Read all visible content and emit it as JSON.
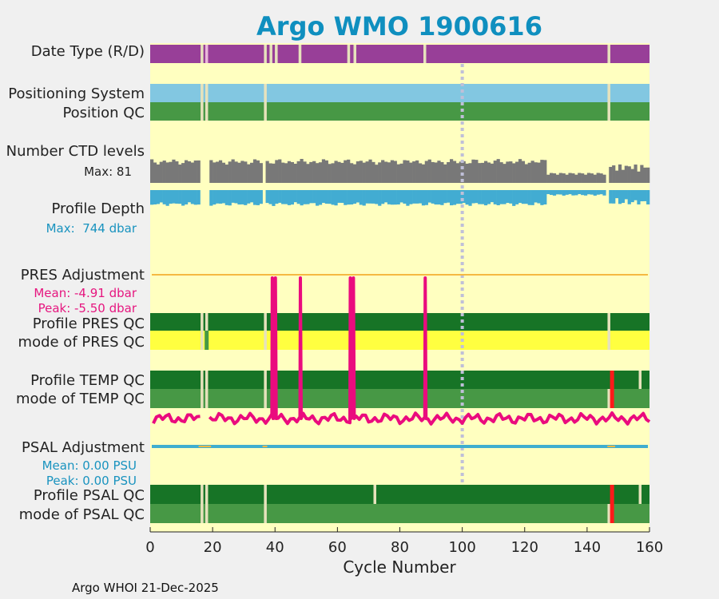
{
  "chart_data": {
    "type": "heatmap",
    "title": "Argo WMO 1900616",
    "xlabel": "Cycle Number",
    "xlim": [
      0,
      160
    ],
    "xticks": [
      0,
      20,
      40,
      60,
      80,
      100,
      120,
      140,
      160
    ],
    "reference_line_x": 100,
    "footer": "Argo WHOI 21-Dec-2025",
    "colors": {
      "plot_bg": "#ffffc0",
      "purple": "#983f98",
      "light_blue": "#82c7e1",
      "green": "#479845",
      "dark_green": "#177426",
      "yellow": "#ffff40",
      "gray": "#787878",
      "depth_blue": "#42acd2",
      "magenta": "#ea0b7e",
      "orange": "#f5b942",
      "red": "#ff1a1a",
      "psal_blue": "#3faecf",
      "gap": "#e6e2bc",
      "title": "#0f8fbf",
      "pres_text": "#e6167f",
      "psal_text": "#1993bf"
    },
    "rows": {
      "date_type": {
        "label": "Date Type (R/D)",
        "gaps": [
          16.6,
          18.1,
          36.9,
          38.7,
          40.4,
          48.0,
          63.6,
          65.6,
          88.0,
          147.0
        ],
        "light_gaps": [
          18.1
        ]
      },
      "positioning_system": {
        "label": "Positioning System",
        "gaps": [
          16.6,
          18.1,
          36.9,
          147.0
        ]
      },
      "position_qc": {
        "label": "Position QC",
        "gaps": [
          16.6,
          18.1,
          36.9,
          147.0
        ]
      },
      "ctd_levels": {
        "label": "Number CTD levels",
        "max_label": "Max: 81",
        "max": 81,
        "gaps": [
          16.6,
          18.1,
          36.9,
          147.0
        ]
      },
      "profile_depth": {
        "label": "Profile Depth",
        "max_label": "Max:  744 dbar",
        "max": 744,
        "gaps": [
          16.6,
          18.1,
          36.9,
          147.0
        ]
      },
      "pres_adjustment": {
        "label": "PRES Adjustment",
        "mean_label": "Mean: -4.91 dbar",
        "peak_label": "Peak: -5.50 dbar",
        "spikes": [
          38.6,
          40.3,
          48.0,
          63.8,
          65.3,
          88.0
        ]
      },
      "profile_pres_qc": {
        "label": "Profile PRES QC",
        "gaps": [
          16.6,
          18.1,
          36.9,
          147.0
        ]
      },
      "mode_pres_qc": {
        "label": "mode of PRES QC",
        "gaps": [
          16.6,
          36.9,
          147.0
        ],
        "green_cells": [
          18.1
        ]
      },
      "profile_temp_qc": {
        "label": "Profile TEMP QC",
        "gaps": [
          16.6,
          18.1,
          36.9
        ],
        "red_cells": [
          148.0
        ],
        "gaps_after": [
          157.0
        ]
      },
      "mode_temp_qc": {
        "label": "mode of TEMP QC",
        "gaps": [
          16.6,
          18.1,
          36.9,
          147.0
        ],
        "red_cells": [
          148.0
        ]
      },
      "psal_adjustment": {
        "label": "PSAL Adjustment",
        "mean_label": "Mean: 0.00 PSU",
        "peak_label": "Peak: 0.00 PSU",
        "orange_spans": [
          [
            15.5,
            19.5
          ],
          [
            36.0,
            37.5
          ],
          [
            146.5,
            149.0
          ]
        ]
      },
      "profile_psal_qc": {
        "label": "Profile PSAL QC",
        "gaps": [
          16.6,
          18.1,
          36.9,
          72.0,
          157.0
        ],
        "red_cells": [
          148.0
        ]
      },
      "mode_psal_qc": {
        "label": "mode of PSAL QC",
        "gaps": [
          16.6,
          18.1,
          36.9,
          147.0
        ],
        "red_cells": [
          148.0
        ]
      }
    }
  }
}
